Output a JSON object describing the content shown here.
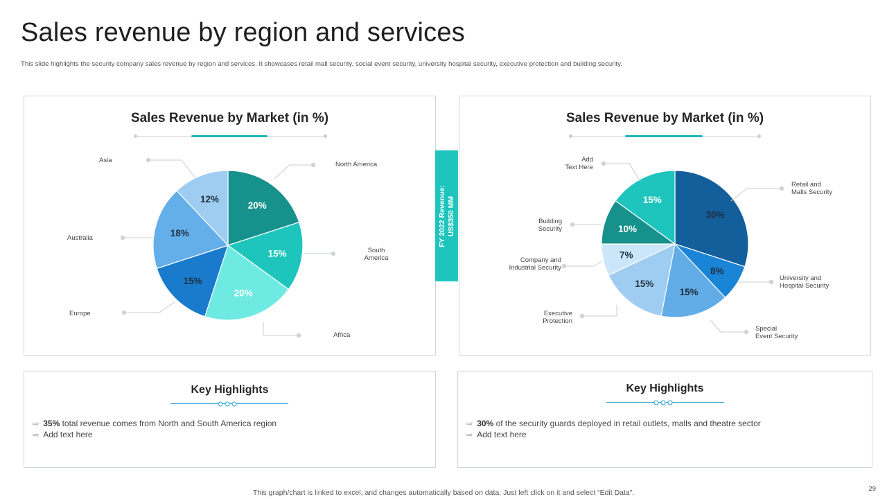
{
  "title": "Sales revenue by region and services",
  "subtitle": "This slide highlights the security company sales revenue by region and services. It showcases retail mall security, social event security, university hospital security, executive protection and building security.",
  "side_label": {
    "line1": "FY 2022 Revenue:",
    "line2": "US$350 MM"
  },
  "chart_data": [
    {
      "type": "pie",
      "title": "Sales Revenue by Market (in %)",
      "categories": [
        "North America",
        "South America",
        "Africa",
        "Europe",
        "Australia",
        "Asia"
      ],
      "values": [
        20,
        15,
        20,
        15,
        18,
        12
      ],
      "labels": [
        "20%",
        "15%",
        "20%",
        "15%",
        "18%",
        "12%"
      ],
      "colors": [
        "#17918b",
        "#1ec5bd",
        "#6eeae3",
        "#1a7bcc",
        "#64aee9",
        "#9fcdf2"
      ],
      "label_colors": [
        "#ffffff",
        "#ffffff",
        "#ffffff",
        "#1e2f3d",
        "#1e2f3d",
        "#1e2f3d"
      ]
    },
    {
      "type": "pie",
      "title": "Sales Revenue by Market (in %)",
      "categories": [
        "Retail and Malls Security",
        "University and Hospital Security",
        "Special Event Security",
        "Executive Protection",
        "Company and Industrial Security",
        "Building Security",
        "Add Text Here"
      ],
      "values": [
        30,
        8,
        15,
        15,
        7,
        10,
        15
      ],
      "labels": [
        "30%",
        "8%",
        "15%",
        "15%",
        "7%",
        "10%",
        "15%"
      ],
      "colors": [
        "#135f9c",
        "#1a84d6",
        "#62ace8",
        "#9fcdf2",
        "#cbe6f9",
        "#17918b",
        "#1ec5bd"
      ],
      "label_colors": [
        "#1e2f3d",
        "#1e2f3d",
        "#1e2f3d",
        "#1e2f3d",
        "#1e2f3d",
        "#ffffff",
        "#ffffff"
      ]
    }
  ],
  "leaders": {
    "left": [
      {
        "text": "North America"
      },
      {
        "text": "South America",
        "line1": "South",
        "line2": "America"
      },
      {
        "text": "Africa"
      },
      {
        "text": "Europe"
      },
      {
        "text": "Australia"
      },
      {
        "text": "Asia"
      }
    ],
    "right": [
      {
        "line1": "Retail and",
        "line2": "Malls Security"
      },
      {
        "line1": "University and",
        "line2": "Hospital Security"
      },
      {
        "line1": "Special",
        "line2": "Event Security"
      },
      {
        "line1": "Executive",
        "line2": "Protection"
      },
      {
        "line1": "Company and",
        "line2": "Industrial Security"
      },
      {
        "line1": "Building",
        "line2": "Security"
      },
      {
        "line1": "Add",
        "line2": "Text Here"
      }
    ]
  },
  "highlights": [
    {
      "title": "Key Highlights",
      "items": [
        {
          "bold": "35%",
          "text": " total revenue  comes from North  and South America region"
        },
        {
          "bold": "",
          "text": "Add text here"
        }
      ]
    },
    {
      "title": "Key Highlights",
      "items": [
        {
          "bold": "30%",
          "text": " of the security guards deployed  in retail outlets, malls and theatre sector"
        },
        {
          "bold": "",
          "text": "Add text here"
        }
      ]
    }
  ],
  "footer": "This graph/chart is linked to excel,  and changes automatically based on data. Just left click on it and select “Edit Data”.",
  "page_number": "29",
  "icons": {
    "bullet": "double-arrow-right-icon"
  }
}
